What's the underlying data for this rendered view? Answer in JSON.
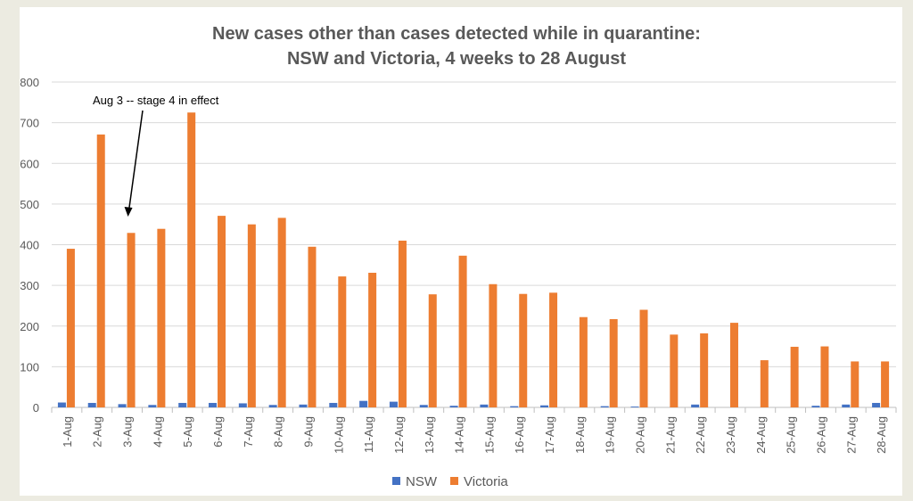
{
  "chart_data": {
    "type": "bar",
    "title": [
      "New cases other than cases detected while in quarantine:",
      "NSW and Victoria, 4 weeks to 28 August"
    ],
    "xlabel": "",
    "ylabel": "",
    "ylim": [
      0,
      800
    ],
    "yticks": [
      0,
      100,
      200,
      300,
      400,
      500,
      600,
      700,
      800
    ],
    "grid": true,
    "legend_placement": "bottom",
    "categories": [
      "1-Aug",
      "2-Aug",
      "3-Aug",
      "4-Aug",
      "5-Aug",
      "6-Aug",
      "7-Aug",
      "8-Aug",
      "9-Aug",
      "10-Aug",
      "11-Aug",
      "12-Aug",
      "13-Aug",
      "14-Aug",
      "15-Aug",
      "16-Aug",
      "17-Aug",
      "18-Aug",
      "19-Aug",
      "20-Aug",
      "21-Aug",
      "22-Aug",
      "23-Aug",
      "24-Aug",
      "25-Aug",
      "26-Aug",
      "27-Aug",
      "28-Aug"
    ],
    "series": [
      {
        "name": "NSW",
        "color": "#4472c4",
        "values": [
          12,
          11,
          8,
          6,
          11,
          11,
          10,
          6,
          7,
          11,
          16,
          14,
          6,
          4,
          7,
          3,
          5,
          0,
          3,
          2,
          0,
          7,
          0,
          0,
          0,
          4,
          7,
          11
        ]
      },
      {
        "name": "Victoria",
        "color": "#ed7d31",
        "values": [
          390,
          671,
          429,
          439,
          725,
          471,
          450,
          466,
          395,
          322,
          331,
          410,
          278,
          373,
          303,
          279,
          282,
          222,
          217,
          240,
          179,
          182,
          208,
          116,
          149,
          150,
          113,
          113
        ]
      }
    ],
    "annotation": {
      "text": "Aug 3 -- stage 4 in effect",
      "category": "3-Aug"
    }
  }
}
